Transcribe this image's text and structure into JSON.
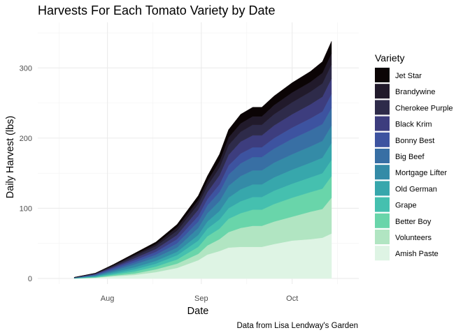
{
  "chart_data": {
    "type": "area",
    "stacked": true,
    "title": "Harvests For Each Tomato Variety by Date",
    "xlabel": "Date",
    "ylabel": "Daily Harvest (lbs)",
    "caption": "Data from Lisa Lendway's Garden",
    "x_ticks": [
      "Aug",
      "Sep",
      "Oct"
    ],
    "y_ticks": [
      0,
      100,
      200,
      300
    ],
    "xlim": [
      "2020-07-09",
      "2020-10-23"
    ],
    "ylim": [
      -8,
      365
    ],
    "grid": true,
    "legend_title": "Variety",
    "legend_position": "right",
    "x": [
      "2020-07-21",
      "2020-07-28",
      "2020-08-03",
      "2020-08-10",
      "2020-08-17",
      "2020-08-24",
      "2020-08-31",
      "2020-09-03",
      "2020-09-07",
      "2020-09-10",
      "2020-09-14",
      "2020-09-18",
      "2020-09-21",
      "2020-09-25",
      "2020-10-01",
      "2020-10-07",
      "2020-10-11",
      "2020-10-14"
    ],
    "series": [
      {
        "name": "Amish Paste",
        "color": "#def4e4",
        "values": [
          0,
          1,
          3,
          5,
          9,
          15,
          26,
          34,
          39,
          44,
          45,
          45,
          45,
          49,
          54,
          56,
          58,
          64
        ]
      },
      {
        "name": "Volunteers",
        "color": "#b1e5c2",
        "values": [
          0,
          0.3,
          1,
          2,
          4,
          6,
          9,
          13,
          17,
          22,
          27,
          30,
          30,
          32,
          34,
          39,
          41,
          51
        ]
      },
      {
        "name": "Better Boy",
        "color": "#69d5aa",
        "values": [
          0.2,
          0.6,
          1.5,
          3,
          4,
          6,
          10,
          13,
          15,
          19,
          21,
          23,
          23,
          25,
          27,
          28,
          29,
          31
        ]
      },
      {
        "name": "Grape",
        "color": "#45c0af",
        "values": [
          0.2,
          0.6,
          1.5,
          3,
          4,
          6,
          9,
          11,
          13,
          15,
          17,
          18,
          18,
          19,
          20,
          21,
          22,
          23
        ]
      },
      {
        "name": "Old German",
        "color": "#37a7ac",
        "values": [
          0.2,
          0.8,
          2,
          3,
          4,
          5,
          8,
          10,
          12,
          15,
          17,
          18,
          18,
          19,
          20,
          21,
          22,
          24
        ]
      },
      {
        "name": "Mortgage Lifter",
        "color": "#348ba7",
        "values": [
          0.2,
          0.8,
          2,
          4,
          5,
          6,
          10,
          12,
          14,
          17,
          19,
          20,
          20,
          21,
          22,
          23,
          24,
          25
        ]
      },
      {
        "name": "Big Beef",
        "color": "#386fa4",
        "values": [
          0.2,
          0.8,
          2,
          3,
          4,
          6,
          9,
          11,
          13,
          16,
          18,
          19,
          19,
          20,
          22,
          23,
          24,
          25
        ]
      },
      {
        "name": "Bonny Best",
        "color": "#3d53a0",
        "values": [
          0.2,
          0.8,
          2,
          3,
          4,
          6,
          8,
          9,
          11,
          13,
          14,
          14,
          14,
          15,
          16,
          17,
          18,
          20
        ]
      },
      {
        "name": "Black Krim",
        "color": "#3d3d7e",
        "values": [
          0.1,
          0.6,
          1.5,
          3,
          4,
          6,
          9,
          10,
          13,
          15,
          17,
          17,
          17,
          18,
          19,
          20,
          21,
          22
        ]
      },
      {
        "name": "Cherokee Purple",
        "color": "#2e2b4a",
        "values": [
          0.1,
          0.6,
          1.5,
          3,
          4,
          6,
          8,
          9,
          11,
          14,
          14,
          15,
          15,
          16,
          17,
          18,
          19,
          20
        ]
      },
      {
        "name": "Brandywine",
        "color": "#211a2b",
        "values": [
          0.1,
          0.4,
          1,
          2,
          3,
          5,
          6,
          7,
          9,
          11,
          12,
          12,
          12,
          13,
          14,
          14,
          15,
          16
        ]
      },
      {
        "name": "Jet Star",
        "color": "#0b0405",
        "values": [
          0.1,
          0.3,
          1,
          2,
          3,
          4,
          6,
          7,
          10,
          11,
          13,
          13,
          13,
          13,
          14,
          15,
          16,
          17
        ]
      }
    ]
  }
}
